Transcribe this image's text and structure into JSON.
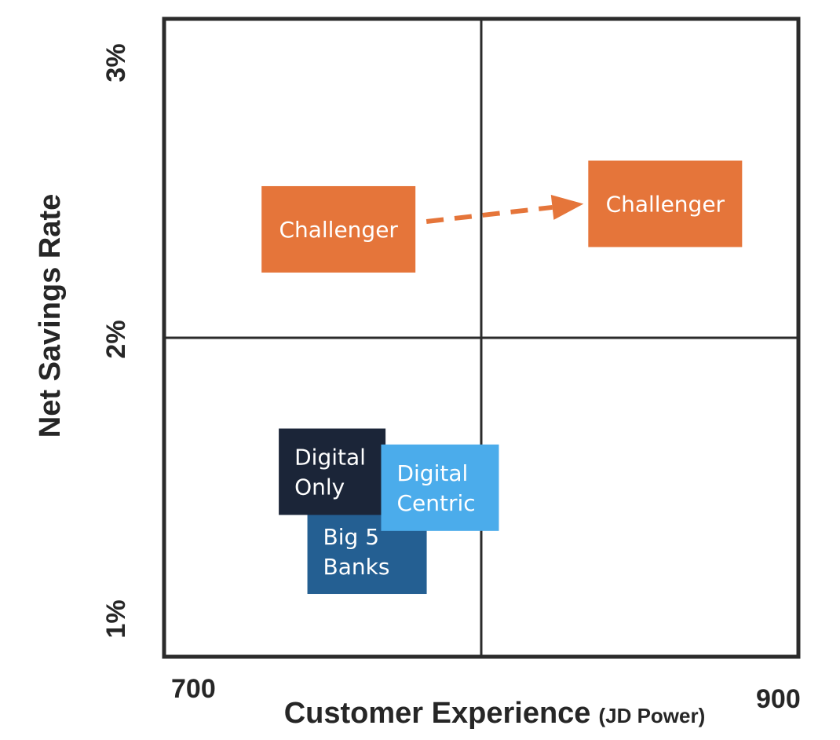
{
  "chart_data": {
    "type": "scatter",
    "title": "",
    "xlabel": "Customer Experience",
    "xlabel_note": "(JD Power)",
    "ylabel": "Net Savings Rate",
    "xlim": [
      700,
      900
    ],
    "ylim": [
      1,
      3
    ],
    "x_ticks": [
      "700",
      "900"
    ],
    "y_ticks": [
      "1%",
      "2%",
      "3%"
    ],
    "grid": "quadrant lines at x=800 and y=2%",
    "points": [
      {
        "key": "challenger-before",
        "lines": [
          "Challenger"
        ],
        "x": 755,
        "y": 2.34,
        "color": "#E5753A"
      },
      {
        "key": "challenger-after",
        "lines": [
          "Challenger"
        ],
        "x": 858,
        "y": 2.42,
        "color": "#E5753A"
      },
      {
        "key": "digital-only",
        "lines": [
          "Digital",
          "Only"
        ],
        "x": 753,
        "y": 1.58,
        "color": "#1B2538"
      },
      {
        "key": "big-5-banks",
        "lines": [
          "Big 5",
          "Banks"
        ],
        "x": 764,
        "y": 1.33,
        "color": "#245F92"
      },
      {
        "key": "digital-centric",
        "lines": [
          "Digital",
          "Centric"
        ],
        "x": 787,
        "y": 1.53,
        "color": "#4BACEB"
      }
    ],
    "arrows": [
      {
        "from": "challenger-before",
        "to": "challenger-after",
        "style": "dashed",
        "color": "#E5753A"
      }
    ]
  }
}
